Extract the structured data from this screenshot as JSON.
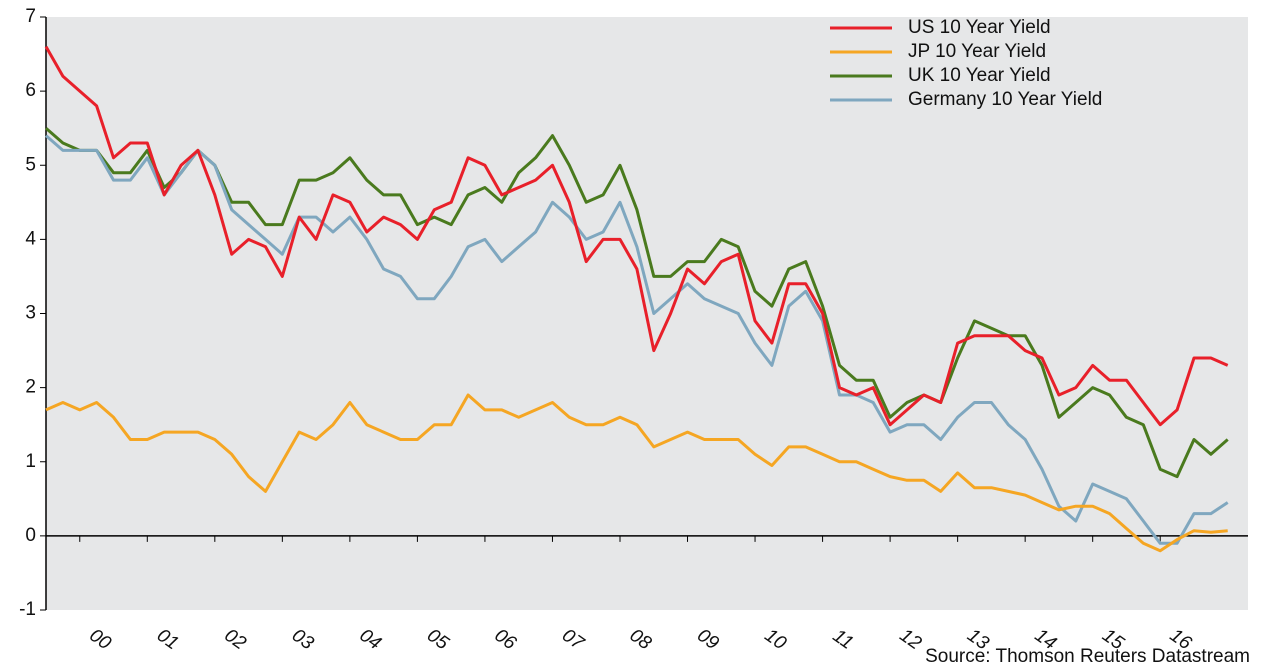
{
  "chart_data": {
    "type": "line",
    "source": "Source: Thomson Reuters Datastream",
    "x": [
      2000,
      2000.25,
      2000.5,
      2000.75,
      2001,
      2001.25,
      2001.5,
      2001.75,
      2002,
      2002.25,
      2002.5,
      2002.75,
      2003,
      2003.25,
      2003.5,
      2003.75,
      2004,
      2004.25,
      2004.5,
      2004.75,
      2005,
      2005.25,
      2005.5,
      2005.75,
      2006,
      2006.25,
      2006.5,
      2006.75,
      2007,
      2007.25,
      2007.5,
      2007.75,
      2008,
      2008.25,
      2008.5,
      2008.75,
      2009,
      2009.25,
      2009.5,
      2009.75,
      2010,
      2010.25,
      2010.5,
      2010.75,
      2011,
      2011.25,
      2011.5,
      2011.75,
      2012,
      2012.25,
      2012.5,
      2012.75,
      2013,
      2013.25,
      2013.5,
      2013.75,
      2014,
      2014.25,
      2014.5,
      2014.75,
      2015,
      2015.25,
      2015.5,
      2015.75,
      2016,
      2016.25,
      2016.5,
      2016.75,
      2017,
      2017.25,
      2017.5
    ],
    "series": [
      {
        "name": "US 10 Year Yield",
        "color": "#e8202a",
        "values": [
          6.6,
          6.2,
          6.0,
          5.8,
          5.1,
          5.3,
          5.3,
          4.6,
          5.0,
          5.2,
          4.6,
          3.8,
          4.0,
          3.9,
          3.5,
          4.3,
          4.0,
          4.6,
          4.5,
          4.1,
          4.3,
          4.2,
          4.0,
          4.4,
          4.5,
          5.1,
          5.0,
          4.6,
          4.7,
          4.8,
          5.0,
          4.5,
          3.7,
          4.0,
          4.0,
          3.6,
          2.5,
          3.0,
          3.6,
          3.4,
          3.7,
          3.8,
          2.9,
          2.6,
          3.4,
          3.4,
          3.0,
          2.0,
          1.9,
          2.0,
          1.5,
          1.7,
          1.9,
          1.8,
          2.6,
          2.7,
          2.7,
          2.7,
          2.5,
          2.4,
          1.9,
          2.0,
          2.3,
          2.1,
          2.1,
          1.8,
          1.5,
          1.7,
          2.4,
          2.4,
          2.3
        ]
      },
      {
        "name": "JP 10 Year Yield",
        "color": "#f5a623",
        "values": [
          1.7,
          1.8,
          1.7,
          1.8,
          1.6,
          1.3,
          1.3,
          1.4,
          1.4,
          1.4,
          1.3,
          1.1,
          0.8,
          0.6,
          1.0,
          1.4,
          1.3,
          1.5,
          1.8,
          1.5,
          1.4,
          1.3,
          1.3,
          1.5,
          1.5,
          1.9,
          1.7,
          1.7,
          1.6,
          1.7,
          1.8,
          1.6,
          1.5,
          1.5,
          1.6,
          1.5,
          1.2,
          1.3,
          1.4,
          1.3,
          1.3,
          1.3,
          1.1,
          0.95,
          1.2,
          1.2,
          1.1,
          1.0,
          1.0,
          0.9,
          0.8,
          0.75,
          0.75,
          0.6,
          0.85,
          0.65,
          0.65,
          0.6,
          0.55,
          0.45,
          0.35,
          0.4,
          0.4,
          0.3,
          0.1,
          -0.1,
          -0.2,
          -0.05,
          0.07,
          0.05,
          0.07
        ]
      },
      {
        "name": "UK 10 Year Yield",
        "color": "#4a7a1e",
        "values": [
          5.5,
          5.3,
          5.2,
          5.2,
          4.9,
          4.9,
          5.2,
          4.7,
          4.9,
          5.2,
          5.0,
          4.5,
          4.5,
          4.2,
          4.2,
          4.8,
          4.8,
          4.9,
          5.1,
          4.8,
          4.6,
          4.6,
          4.2,
          4.3,
          4.2,
          4.6,
          4.7,
          4.5,
          4.9,
          5.1,
          5.4,
          5.0,
          4.5,
          4.6,
          5.0,
          4.4,
          3.5,
          3.5,
          3.7,
          3.7,
          4.0,
          3.9,
          3.3,
          3.1,
          3.6,
          3.7,
          3.1,
          2.3,
          2.1,
          2.1,
          1.6,
          1.8,
          1.9,
          1.8,
          2.4,
          2.9,
          2.8,
          2.7,
          2.7,
          2.3,
          1.6,
          1.8,
          2.0,
          1.9,
          1.6,
          1.5,
          0.9,
          0.8,
          1.3,
          1.1,
          1.3
        ]
      },
      {
        "name": "Germany 10 Year Yield",
        "color": "#7fa7bf",
        "values": [
          5.4,
          5.2,
          5.2,
          5.2,
          4.8,
          4.8,
          5.1,
          4.6,
          4.9,
          5.2,
          5.0,
          4.4,
          4.2,
          4.0,
          3.8,
          4.3,
          4.3,
          4.1,
          4.3,
          4.0,
          3.6,
          3.5,
          3.2,
          3.2,
          3.5,
          3.9,
          4.0,
          3.7,
          3.9,
          4.1,
          4.5,
          4.3,
          4.0,
          4.1,
          4.5,
          3.9,
          3.0,
          3.2,
          3.4,
          3.2,
          3.1,
          3.0,
          2.6,
          2.3,
          3.1,
          3.3,
          2.9,
          1.9,
          1.9,
          1.8,
          1.4,
          1.5,
          1.5,
          1.3,
          1.6,
          1.8,
          1.8,
          1.5,
          1.3,
          0.9,
          0.4,
          0.2,
          0.7,
          0.6,
          0.5,
          0.2,
          -0.1,
          -0.1,
          0.3,
          0.3,
          0.45
        ]
      }
    ],
    "xlim": [
      2000,
      2017.8
    ],
    "xticks": [
      {
        "value": 2000.5,
        "label": "00"
      },
      {
        "value": 2001.5,
        "label": "01"
      },
      {
        "value": 2002.5,
        "label": "02"
      },
      {
        "value": 2003.5,
        "label": "03"
      },
      {
        "value": 2004.5,
        "label": "04"
      },
      {
        "value": 2005.5,
        "label": "05"
      },
      {
        "value": 2006.5,
        "label": "06"
      },
      {
        "value": 2007.5,
        "label": "07"
      },
      {
        "value": 2008.5,
        "label": "08"
      },
      {
        "value": 2009.5,
        "label": "09"
      },
      {
        "value": 2010.5,
        "label": "10"
      },
      {
        "value": 2011.5,
        "label": "11"
      },
      {
        "value": 2012.5,
        "label": "12"
      },
      {
        "value": 2013.5,
        "label": "13"
      },
      {
        "value": 2014.5,
        "label": "14"
      },
      {
        "value": 2015.5,
        "label": "15"
      },
      {
        "value": 2016.5,
        "label": "16"
      }
    ],
    "ylim": [
      -1,
      7
    ],
    "yticks": [
      -1,
      0,
      1,
      2,
      3,
      4,
      5,
      6,
      7
    ],
    "legend": "upper right",
    "grid": false
  }
}
